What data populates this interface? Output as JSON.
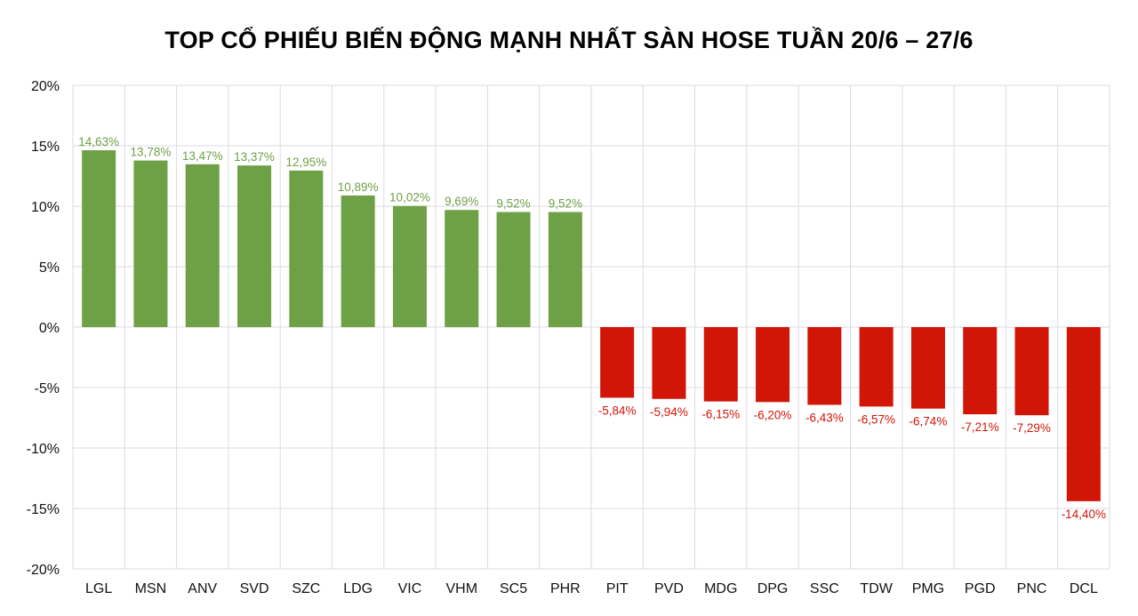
{
  "chart_data": {
    "type": "bar",
    "title": "TOP CỔ PHIẾU BIẾN ĐỘNG MẠNH NHẤT SÀN HOSE TUẦN 20/6 – 27/6",
    "xlabel": "",
    "ylabel": "",
    "ylim": [
      -20,
      20
    ],
    "yticks": [
      20,
      15,
      10,
      5,
      0,
      -5,
      -10,
      -15,
      -20
    ],
    "ytick_labels": [
      "20%",
      "15%",
      "10%",
      "5%",
      "0%",
      "-5%",
      "-10%",
      "-15%",
      "-20%"
    ],
    "grid": true,
    "categories": [
      "LGL",
      "MSN",
      "ANV",
      "SVD",
      "SZC",
      "LDG",
      "VIC",
      "VHM",
      "SC5",
      "PHR",
      "PIT",
      "PVD",
      "MDG",
      "DPG",
      "SSC",
      "TDW",
      "PMG",
      "PGD",
      "PNC",
      "DCL"
    ],
    "values": [
      14.63,
      13.78,
      13.47,
      13.37,
      12.95,
      10.89,
      10.02,
      9.69,
      9.52,
      9.52,
      -5.84,
      -5.94,
      -6.15,
      -6.2,
      -6.43,
      -6.57,
      -6.74,
      -7.21,
      -7.29,
      -14.4
    ],
    "data_labels": [
      "14,63%",
      "13,78%",
      "13,47%",
      "13,37%",
      "12,95%",
      "10,89%",
      "10,02%",
      "9,69%",
      "9,52%",
      "9,52%",
      "-5,84%",
      "-5,94%",
      "-6,15%",
      "-6,20%",
      "-6,43%",
      "-6,57%",
      "-6,74%",
      "-7,21%",
      "-7,29%",
      "-14,40%"
    ],
    "colors": {
      "positive": "#6ea046",
      "negative": "#d11506",
      "grid": "#dcdae3"
    }
  }
}
